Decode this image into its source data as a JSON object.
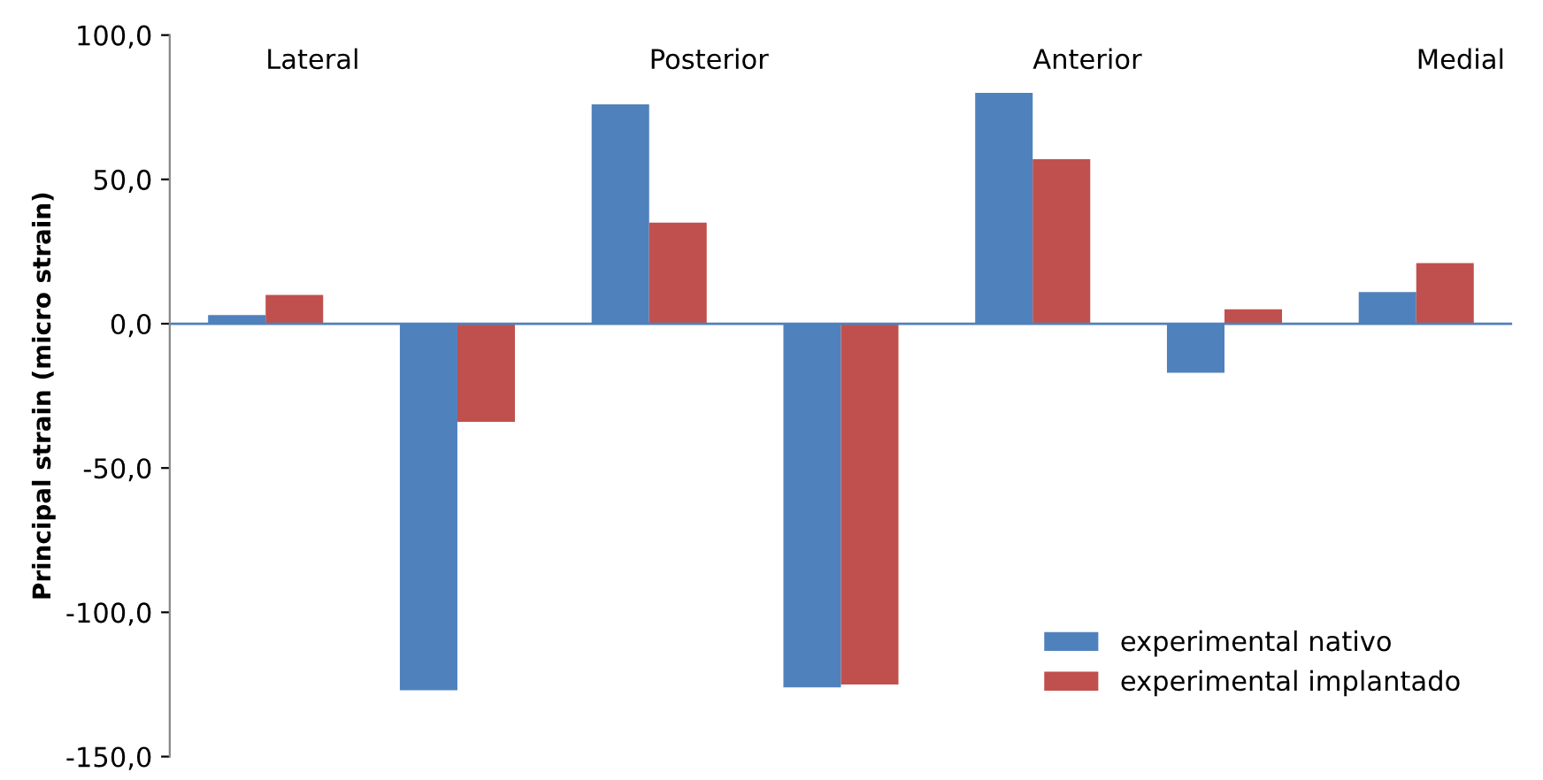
{
  "chart_data": {
    "type": "bar",
    "ylabel": "Principal strain (micro strain)",
    "categories": [
      "Lateral",
      null,
      "Posterior",
      null,
      "Anterior",
      null,
      "Medial"
    ],
    "series": [
      {
        "name": "experimental nativo",
        "color": "#4f81bd",
        "values": [
          3,
          -127,
          76,
          -126,
          80,
          -17,
          11
        ]
      },
      {
        "name": "experimental implantado",
        "color": "#c0504d",
        "values": [
          10,
          -34,
          35,
          -125,
          57,
          5,
          21
        ]
      }
    ],
    "ylim": [
      -150,
      100
    ],
    "yticks": [
      {
        "value": -150,
        "label": "-150,0"
      },
      {
        "value": -100,
        "label": "-100,0"
      },
      {
        "value": -50,
        "label": "-50,0"
      },
      {
        "value": 0,
        "label": "0,0"
      },
      {
        "value": 50,
        "label": "50,0"
      },
      {
        "value": 100,
        "label": "100,0"
      }
    ],
    "ref_lines": [
      {
        "axis": "y",
        "value": 0,
        "color": "#4f81bd"
      }
    ],
    "grid": false,
    "legend": "bottom right"
  }
}
